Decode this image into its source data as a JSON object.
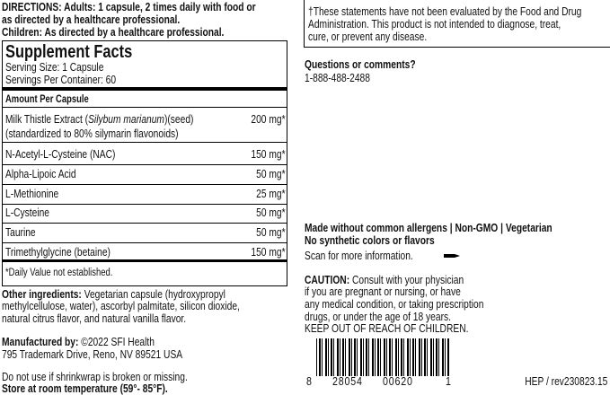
{
  "directions": {
    "lines": [
      "DIRECTIONS: Adults: 1 capsule, 2 times daily with food or",
      "as directed by a healthcare professional.",
      "Children: As directed by a healthcare professional."
    ]
  },
  "supplement_facts": {
    "title": "Supplement Facts",
    "serving_size": "Serving Size: 1 Capsule",
    "servings_per_container": "Servings Per Container: 60",
    "amount_header": "Amount Per Capsule",
    "rows": [
      {
        "name": "Milk Thistle Extract (",
        "name_italic": "Silybum marianum",
        "name_suffix": ")(seed)",
        "detail": "(standardized to 80% silymarin flavonoids)",
        "amount": "200 mg*"
      },
      {
        "name": "N-Acetyl-L-Cysteine (NAC)",
        "amount": "150 mg*"
      },
      {
        "name": "Alpha-Lipoic Acid",
        "amount": "50 mg*"
      },
      {
        "name": "L-Methionine",
        "amount": "25 mg*"
      },
      {
        "name": "L-Cysteine",
        "amount": "50 mg*"
      },
      {
        "name": "Taurine",
        "amount": "50 mg*"
      },
      {
        "name": "Trimethylglycine (betaine)",
        "amount": "150 mg*"
      }
    ],
    "footnote": "*Daily Value not established."
  },
  "other_ingredients": {
    "label": "Other ingredients:",
    "lines": [
      "Vegetarian capsule (hydroxypropyl",
      "methylcellulose, water), ascorbyl palmitate, silicon dioxide,",
      "natural citrus flavor, and natural vanilla flavor."
    ]
  },
  "manufacturer": {
    "label": "Manufactured by:",
    "name": "©2022 SFI Health",
    "address": "795 Trademark Drive, Reno, NV 89521 USA"
  },
  "warnings": {
    "shrinkwrap": "Do not use if shrinkwrap is broken or missing.",
    "storage": "Store at room temperature (59°- 85°F)."
  },
  "disclaimer": {
    "lines": [
      "†These statements have not been evaluated by the Food and Drug",
      "Administration. This product is not intended to diagnose, treat,",
      "cure, or prevent any disease."
    ]
  },
  "contact": {
    "title": "Questions or comments?",
    "phone": "1-888-488-2488"
  },
  "claims": {
    "lines": [
      "Made without common allergens | Non-GMO | Vegetarian",
      "No synthetic colors or flavors"
    ],
    "scan": "Scan for more information."
  },
  "caution": {
    "label": "CAUTION:",
    "lines": [
      "Consult with your physician",
      "if you are pregnant or nursing, or have",
      "any medical condition, or taking prescription",
      "drugs, or under the age of 18 years.",
      "KEEP OUT OF REACH OF CHILDREN."
    ]
  },
  "barcode": {
    "digits": [
      "8",
      "28054",
      "00620",
      "1"
    ]
  },
  "lot": "HEP / rev230823.15"
}
